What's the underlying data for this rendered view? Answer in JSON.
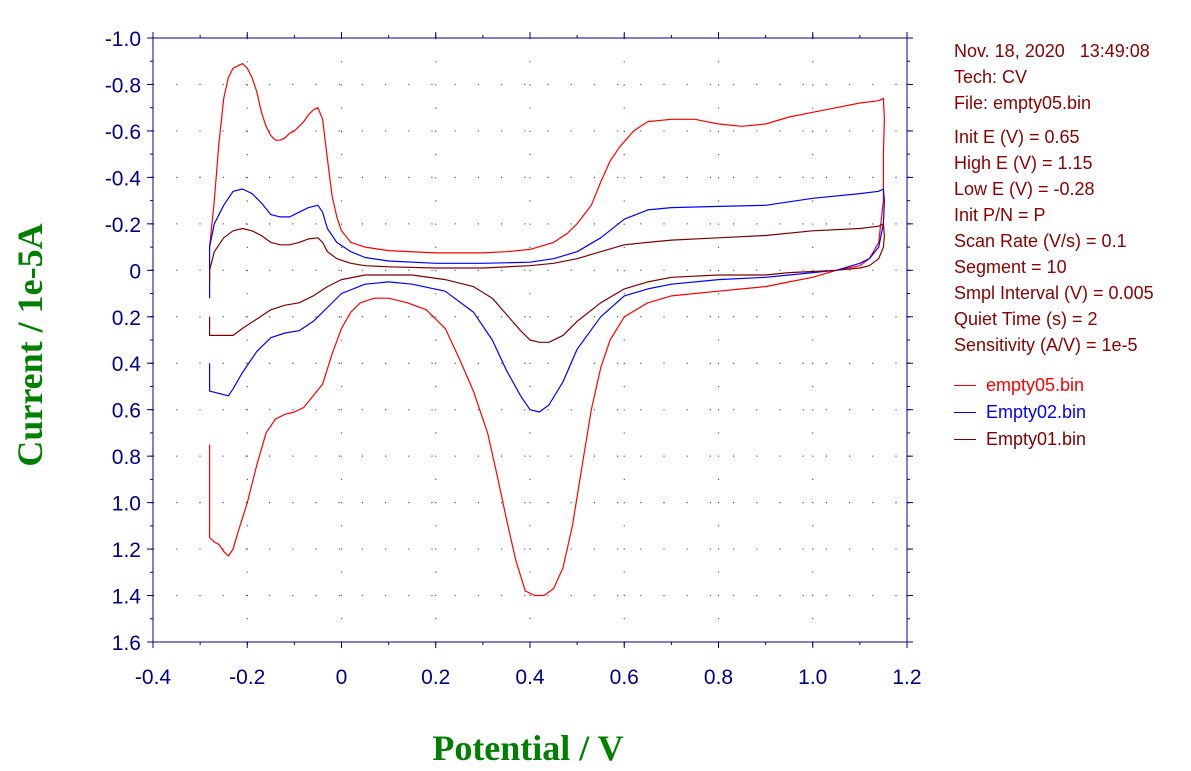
{
  "colors": {
    "axis": "#00008b",
    "axis_title": "#008000",
    "grid_dot": "#5a5a5a",
    "info_text": "#8b0000"
  },
  "info": {
    "datetime": "Nov. 18, 2020   13:49:08",
    "tech": "Tech: CV",
    "file": "File: empty05.bin",
    "init_e": "Init E (V) = 0.65",
    "high_e": "High E (V) = 1.15",
    "low_e": "Low E (V) = -0.28",
    "init_pn": "Init P/N = P",
    "scan_rate": "Scan Rate (V/s) = 0.1",
    "segment": "Segment = 10",
    "smpl_interval": "Smpl Interval (V) = 0.005",
    "quiet_time": "Quiet Time (s) = 2",
    "sensitivity": "Sensitivity (A/V) = 1e-5"
  },
  "chart_data": {
    "type": "line",
    "xlabel": "Potential / V",
    "ylabel": "Current / 1e-5A",
    "xlim": [
      -0.4,
      1.2
    ],
    "ylim": [
      1.6,
      -1.0
    ],
    "y_inverted": true,
    "grid": "dotted",
    "legend": "right",
    "x_ticks": [
      "-0.4",
      "-0.2",
      "0",
      "0.2",
      "0.4",
      "0.6",
      "0.8",
      "1.0",
      "1.2"
    ],
    "y_ticks": [
      "-1.0",
      "-0.8",
      "-0.6",
      "-0.4",
      "-0.2",
      "0",
      "0.2",
      "0.4",
      "0.6",
      "0.8",
      "1.0",
      "1.2",
      "1.4",
      "1.6"
    ],
    "series": [
      {
        "name": "empty05.bin",
        "color": "#ff0000",
        "points": [
          [
            -0.28,
            -0.1
          ],
          [
            -0.27,
            -0.3
          ],
          [
            -0.26,
            -0.55
          ],
          [
            -0.25,
            -0.74
          ],
          [
            -0.24,
            -0.83
          ],
          [
            -0.23,
            -0.87
          ],
          [
            -0.22,
            -0.88
          ],
          [
            -0.21,
            -0.89
          ],
          [
            -0.2,
            -0.87
          ],
          [
            -0.19,
            -0.83
          ],
          [
            -0.18,
            -0.77
          ],
          [
            -0.17,
            -0.68
          ],
          [
            -0.16,
            -0.62
          ],
          [
            -0.15,
            -0.58
          ],
          [
            -0.14,
            -0.56
          ],
          [
            -0.13,
            -0.56
          ],
          [
            -0.12,
            -0.57
          ],
          [
            -0.11,
            -0.59
          ],
          [
            -0.1,
            -0.6
          ],
          [
            -0.09,
            -0.62
          ],
          [
            -0.08,
            -0.64
          ],
          [
            -0.07,
            -0.67
          ],
          [
            -0.06,
            -0.69
          ],
          [
            -0.05,
            -0.7
          ],
          [
            -0.04,
            -0.65
          ],
          [
            -0.03,
            -0.48
          ],
          [
            -0.02,
            -0.32
          ],
          [
            -0.01,
            -0.23
          ],
          [
            0.0,
            -0.17
          ],
          [
            0.02,
            -0.12
          ],
          [
            0.05,
            -0.1
          ],
          [
            0.1,
            -0.085
          ],
          [
            0.2,
            -0.075
          ],
          [
            0.3,
            -0.075
          ],
          [
            0.35,
            -0.08
          ],
          [
            0.4,
            -0.09
          ],
          [
            0.45,
            -0.12
          ],
          [
            0.48,
            -0.16
          ],
          [
            0.5,
            -0.2
          ],
          [
            0.53,
            -0.28
          ],
          [
            0.55,
            -0.38
          ],
          [
            0.57,
            -0.47
          ],
          [
            0.59,
            -0.53
          ],
          [
            0.62,
            -0.6
          ],
          [
            0.65,
            -0.64
          ],
          [
            0.7,
            -0.65
          ],
          [
            0.75,
            -0.65
          ],
          [
            0.8,
            -0.63
          ],
          [
            0.85,
            -0.62
          ],
          [
            0.9,
            -0.63
          ],
          [
            0.95,
            -0.66
          ],
          [
            1.0,
            -0.68
          ],
          [
            1.05,
            -0.7
          ],
          [
            1.1,
            -0.72
          ],
          [
            1.14,
            -0.73
          ],
          [
            1.15,
            -0.74
          ],
          [
            1.152,
            -0.65
          ],
          [
            1.15,
            -0.5
          ],
          [
            1.15,
            -0.3
          ],
          [
            1.14,
            -0.12
          ],
          [
            1.12,
            -0.05
          ],
          [
            1.1,
            -0.02
          ],
          [
            1.05,
            0.0
          ],
          [
            1.0,
            0.03
          ],
          [
            0.95,
            0.05
          ],
          [
            0.9,
            0.07
          ],
          [
            0.85,
            0.08
          ],
          [
            0.8,
            0.09
          ],
          [
            0.75,
            0.1
          ],
          [
            0.7,
            0.11
          ],
          [
            0.65,
            0.14
          ],
          [
            0.6,
            0.2
          ],
          [
            0.57,
            0.3
          ],
          [
            0.55,
            0.42
          ],
          [
            0.53,
            0.6
          ],
          [
            0.51,
            0.85
          ],
          [
            0.49,
            1.1
          ],
          [
            0.47,
            1.28
          ],
          [
            0.45,
            1.37
          ],
          [
            0.43,
            1.4
          ],
          [
            0.41,
            1.4
          ],
          [
            0.39,
            1.38
          ],
          [
            0.37,
            1.25
          ],
          [
            0.35,
            1.07
          ],
          [
            0.33,
            0.88
          ],
          [
            0.31,
            0.7
          ],
          [
            0.28,
            0.52
          ],
          [
            0.25,
            0.38
          ],
          [
            0.22,
            0.25
          ],
          [
            0.18,
            0.17
          ],
          [
            0.14,
            0.14
          ],
          [
            0.1,
            0.12
          ],
          [
            0.07,
            0.12
          ],
          [
            0.04,
            0.14
          ],
          [
            0.02,
            0.18
          ],
          [
            0.0,
            0.25
          ],
          [
            -0.02,
            0.36
          ],
          [
            -0.04,
            0.49
          ],
          [
            -0.06,
            0.54
          ],
          [
            -0.08,
            0.59
          ],
          [
            -0.1,
            0.61
          ],
          [
            -0.12,
            0.62
          ],
          [
            -0.14,
            0.64
          ],
          [
            -0.16,
            0.7
          ],
          [
            -0.18,
            0.84
          ],
          [
            -0.2,
            1.0
          ],
          [
            -0.22,
            1.13
          ],
          [
            -0.23,
            1.2
          ],
          [
            -0.24,
            1.23
          ],
          [
            -0.25,
            1.21
          ],
          [
            -0.26,
            1.18
          ],
          [
            -0.27,
            1.17
          ],
          [
            -0.28,
            1.15
          ],
          [
            -0.28,
            0.75
          ]
        ]
      },
      {
        "name": "Empty02.bin",
        "color": "#0000ff",
        "points": [
          [
            -0.28,
            0.12
          ],
          [
            -0.28,
            0.0
          ],
          [
            -0.28,
            -0.1
          ],
          [
            -0.27,
            -0.2
          ],
          [
            -0.25,
            -0.28
          ],
          [
            -0.23,
            -0.34
          ],
          [
            -0.21,
            -0.35
          ],
          [
            -0.19,
            -0.33
          ],
          [
            -0.17,
            -0.29
          ],
          [
            -0.15,
            -0.24
          ],
          [
            -0.13,
            -0.23
          ],
          [
            -0.11,
            -0.23
          ],
          [
            -0.09,
            -0.25
          ],
          [
            -0.07,
            -0.27
          ],
          [
            -0.05,
            -0.28
          ],
          [
            -0.04,
            -0.25
          ],
          [
            -0.03,
            -0.18
          ],
          [
            -0.01,
            -0.12
          ],
          [
            0.02,
            -0.08
          ],
          [
            0.05,
            -0.055
          ],
          [
            0.1,
            -0.04
          ],
          [
            0.2,
            -0.03
          ],
          [
            0.3,
            -0.03
          ],
          [
            0.4,
            -0.035
          ],
          [
            0.45,
            -0.05
          ],
          [
            0.5,
            -0.08
          ],
          [
            0.55,
            -0.14
          ],
          [
            0.6,
            -0.22
          ],
          [
            0.65,
            -0.26
          ],
          [
            0.7,
            -0.27
          ],
          [
            0.8,
            -0.275
          ],
          [
            0.9,
            -0.28
          ],
          [
            1.0,
            -0.31
          ],
          [
            1.1,
            -0.33
          ],
          [
            1.14,
            -0.34
          ],
          [
            1.15,
            -0.35
          ],
          [
            1.152,
            -0.3
          ],
          [
            1.15,
            -0.2
          ],
          [
            1.14,
            -0.1
          ],
          [
            1.12,
            -0.05
          ],
          [
            1.1,
            -0.03
          ],
          [
            1.05,
            0.0
          ],
          [
            1.0,
            0.01
          ],
          [
            0.95,
            0.02
          ],
          [
            0.9,
            0.03
          ],
          [
            0.8,
            0.04
          ],
          [
            0.7,
            0.06
          ],
          [
            0.65,
            0.08
          ],
          [
            0.6,
            0.11
          ],
          [
            0.55,
            0.2
          ],
          [
            0.5,
            0.34
          ],
          [
            0.47,
            0.48
          ],
          [
            0.44,
            0.58
          ],
          [
            0.42,
            0.61
          ],
          [
            0.4,
            0.6
          ],
          [
            0.38,
            0.54
          ],
          [
            0.35,
            0.43
          ],
          [
            0.32,
            0.3
          ],
          [
            0.28,
            0.18
          ],
          [
            0.22,
            0.09
          ],
          [
            0.15,
            0.06
          ],
          [
            0.1,
            0.05
          ],
          [
            0.05,
            0.06
          ],
          [
            0.0,
            0.1
          ],
          [
            -0.03,
            0.16
          ],
          [
            -0.06,
            0.22
          ],
          [
            -0.09,
            0.26
          ],
          [
            -0.12,
            0.27
          ],
          [
            -0.15,
            0.29
          ],
          [
            -0.18,
            0.35
          ],
          [
            -0.21,
            0.44
          ],
          [
            -0.23,
            0.51
          ],
          [
            -0.24,
            0.54
          ],
          [
            -0.26,
            0.53
          ],
          [
            -0.28,
            0.52
          ],
          [
            -0.28,
            0.4
          ]
        ]
      },
      {
        "name": "Empty01.bin",
        "color": "#800000",
        "points": [
          [
            -0.28,
            0.05
          ],
          [
            -0.28,
            0.0
          ],
          [
            -0.27,
            -0.08
          ],
          [
            -0.25,
            -0.14
          ],
          [
            -0.23,
            -0.17
          ],
          [
            -0.21,
            -0.18
          ],
          [
            -0.19,
            -0.17
          ],
          [
            -0.17,
            -0.15
          ],
          [
            -0.15,
            -0.12
          ],
          [
            -0.13,
            -0.11
          ],
          [
            -0.11,
            -0.11
          ],
          [
            -0.09,
            -0.12
          ],
          [
            -0.07,
            -0.135
          ],
          [
            -0.05,
            -0.14
          ],
          [
            -0.04,
            -0.12
          ],
          [
            -0.03,
            -0.08
          ],
          [
            -0.01,
            -0.05
          ],
          [
            0.02,
            -0.03
          ],
          [
            0.05,
            -0.02
          ],
          [
            0.1,
            -0.015
          ],
          [
            0.2,
            -0.01
          ],
          [
            0.3,
            -0.01
          ],
          [
            0.4,
            -0.02
          ],
          [
            0.45,
            -0.03
          ],
          [
            0.5,
            -0.05
          ],
          [
            0.55,
            -0.08
          ],
          [
            0.6,
            -0.11
          ],
          [
            0.65,
            -0.12
          ],
          [
            0.7,
            -0.13
          ],
          [
            0.8,
            -0.14
          ],
          [
            0.9,
            -0.15
          ],
          [
            1.0,
            -0.17
          ],
          [
            1.1,
            -0.18
          ],
          [
            1.14,
            -0.19
          ],
          [
            1.15,
            -0.2
          ],
          [
            1.152,
            -0.15
          ],
          [
            1.15,
            -0.1
          ],
          [
            1.14,
            -0.05
          ],
          [
            1.12,
            -0.02
          ],
          [
            1.1,
            -0.01
          ],
          [
            1.05,
            0.0
          ],
          [
            1.0,
            0.005
          ],
          [
            0.95,
            0.01
          ],
          [
            0.9,
            0.02
          ],
          [
            0.8,
            0.02
          ],
          [
            0.7,
            0.03
          ],
          [
            0.65,
            0.05
          ],
          [
            0.6,
            0.08
          ],
          [
            0.55,
            0.14
          ],
          [
            0.5,
            0.22
          ],
          [
            0.47,
            0.28
          ],
          [
            0.44,
            0.31
          ],
          [
            0.42,
            0.31
          ],
          [
            0.4,
            0.3
          ],
          [
            0.38,
            0.26
          ],
          [
            0.35,
            0.19
          ],
          [
            0.32,
            0.12
          ],
          [
            0.28,
            0.07
          ],
          [
            0.22,
            0.04
          ],
          [
            0.15,
            0.02
          ],
          [
            0.1,
            0.02
          ],
          [
            0.05,
            0.02
          ],
          [
            0.0,
            0.04
          ],
          [
            -0.03,
            0.07
          ],
          [
            -0.06,
            0.11
          ],
          [
            -0.09,
            0.14
          ],
          [
            -0.12,
            0.15
          ],
          [
            -0.15,
            0.17
          ],
          [
            -0.18,
            0.21
          ],
          [
            -0.21,
            0.25
          ],
          [
            -0.23,
            0.28
          ],
          [
            -0.25,
            0.28
          ],
          [
            -0.27,
            0.28
          ],
          [
            -0.28,
            0.28
          ],
          [
            -0.28,
            0.2
          ]
        ]
      }
    ]
  }
}
